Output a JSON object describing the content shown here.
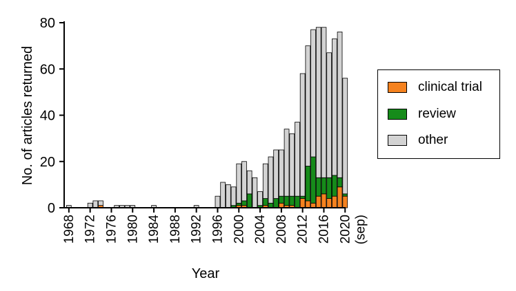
{
  "chart_data": {
    "type": "bar",
    "stacked": true,
    "xlabel": "Year",
    "ylabel": "No. of articles returned",
    "ylim": [
      0,
      80
    ],
    "y_ticks": [
      "0",
      "20",
      "40",
      "60",
      "80"
    ],
    "x_tick_labels": [
      "1968",
      "1972",
      "1976",
      "1980",
      "1984",
      "1988",
      "1992",
      "1996",
      "2000",
      "2004",
      "2008",
      "2012",
      "2016",
      "2020",
      "(sep)"
    ],
    "categories": [
      1968,
      1969,
      1970,
      1971,
      1972,
      1973,
      1974,
      1975,
      1976,
      1977,
      1978,
      1979,
      1980,
      1981,
      1982,
      1983,
      1984,
      1985,
      1986,
      1987,
      1988,
      1989,
      1990,
      1991,
      1992,
      1993,
      1994,
      1995,
      1996,
      1997,
      1998,
      1999,
      2000,
      2001,
      2002,
      2003,
      2004,
      2005,
      2006,
      2007,
      2008,
      2009,
      2010,
      2011,
      2012,
      2013,
      2014,
      2015,
      2016,
      2017,
      2018,
      2019,
      2020
    ],
    "series": [
      {
        "name": "clinical trial",
        "color": "#f5821f",
        "values": [
          0,
          0,
          0,
          0,
          0,
          0,
          1,
          0,
          0,
          0,
          0,
          0,
          0,
          0,
          0,
          0,
          0,
          0,
          0,
          0,
          0,
          0,
          0,
          0,
          0,
          0,
          0,
          0,
          0,
          0,
          0,
          0,
          1,
          1,
          0,
          0,
          0,
          1,
          0,
          0,
          2,
          1,
          1,
          0,
          4,
          3,
          2,
          5,
          6,
          4,
          5,
          9,
          5
        ]
      },
      {
        "name": "review",
        "color": "#168b1a",
        "values": [
          0,
          0,
          0,
          0,
          0,
          0,
          0,
          0,
          0,
          0,
          0,
          0,
          0,
          0,
          0,
          0,
          0,
          0,
          0,
          0,
          0,
          0,
          0,
          0,
          0,
          0,
          0,
          0,
          0,
          0,
          0,
          1,
          1,
          2,
          6,
          0,
          1,
          3,
          2,
          4,
          3,
          4,
          4,
          5,
          1,
          15,
          20,
          8,
          7,
          9,
          9,
          4,
          1
        ]
      },
      {
        "name": "other",
        "color": "#d3d3d3",
        "values": [
          1,
          0,
          0,
          0,
          2,
          3,
          2,
          0,
          0,
          1,
          1,
          1,
          1,
          0,
          0,
          0,
          1,
          0,
          0,
          0,
          0,
          0,
          0,
          0,
          1,
          0,
          0,
          0,
          5,
          11,
          10,
          8,
          17,
          17,
          10,
          13,
          6,
          15,
          20,
          21,
          20,
          29,
          27,
          32,
          53,
          52,
          55,
          65,
          65,
          54,
          59,
          63,
          50
        ]
      }
    ],
    "legend": {
      "position": "right"
    },
    "grid": false
  }
}
